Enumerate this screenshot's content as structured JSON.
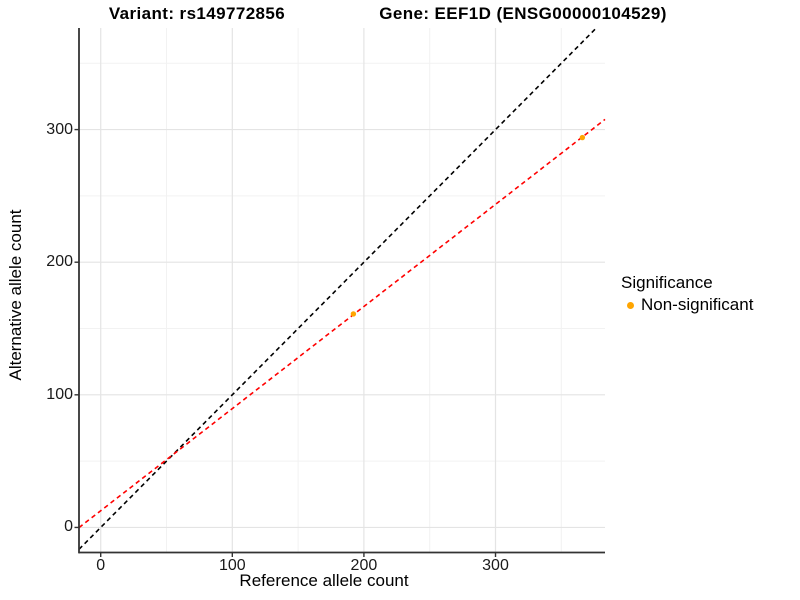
{
  "chart_data": {
    "type": "scatter",
    "title_left": "Variant: rs149772856",
    "title_right": "Gene: EEF1D (ENSG00000104529)",
    "xlabel": "Reference allele count",
    "ylabel": "Alternative allele count",
    "xlim": [
      -16.5,
      383.2
    ],
    "ylim": [
      -18.9,
      376.6
    ],
    "x_ticks": [
      0,
      100,
      200,
      300
    ],
    "y_ticks": [
      0,
      100,
      200,
      300
    ],
    "minor_x": [
      50,
      150,
      250,
      350
    ],
    "minor_y": [
      50,
      150,
      250,
      350
    ],
    "grid": true,
    "points": [
      {
        "x": 192,
        "y": 161,
        "series": "Non-significant"
      },
      {
        "x": 366,
        "y": 294,
        "series": "Non-significant"
      }
    ],
    "point_color": "#FFA500",
    "lines": [
      {
        "name": "identity-line",
        "slope": 1.0,
        "intercept": 0,
        "color": "#000000",
        "style": "dashed"
      },
      {
        "name": "fit-line",
        "slope": 0.77,
        "intercept": 12.6,
        "color": "#FF0000",
        "style": "dashed"
      }
    ],
    "legend": {
      "title": "Significance",
      "items": [
        {
          "label": "Non-significant",
          "color": "#FFA500"
        }
      ],
      "position": "right"
    },
    "colors": {
      "axis": "#333333",
      "major_grid": "#e4e4e4",
      "minor_grid": "#f2f2f2"
    }
  }
}
